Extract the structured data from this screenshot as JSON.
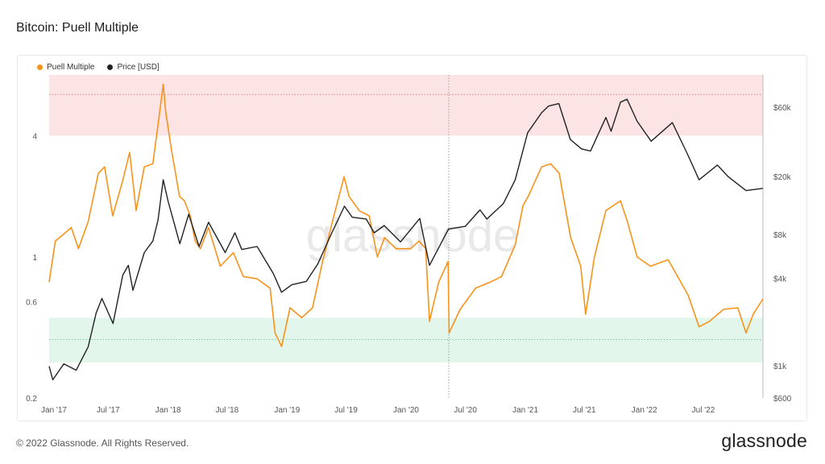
{
  "title": "Bitcoin: Puell Multiple",
  "legend": [
    {
      "label": "Puell Multiple",
      "color": "#f7931a"
    },
    {
      "label": "Price [USD]",
      "color": "#222222"
    }
  ],
  "watermark": "glassnode",
  "footer": {
    "copyright": "© 2022 Glassnode. All Rights Reserved.",
    "logo": "glassnode"
  },
  "colors": {
    "puell": "#f7931a",
    "price": "#222222",
    "red_band": "#fce4e4",
    "green_band": "#e3f6ec",
    "red_line": "#e06666",
    "green_line": "#5bbf8a"
  },
  "chart_data": {
    "type": "line",
    "x_ticks": [
      "Jan '17",
      "Jul '17",
      "Jan '18",
      "Jul '18",
      "Jan '19",
      "Jul '19",
      "Jan '20",
      "Jul '20",
      "Jan '21",
      "Jul '21",
      "Jan '22",
      "Jul '22"
    ],
    "y_left": {
      "scale": "log",
      "ticks": [
        "4",
        "1",
        "0.6",
        "0.2"
      ],
      "tick_values": [
        4,
        1,
        0.6,
        0.2
      ],
      "range": [
        0.2,
        8
      ]
    },
    "y_right": {
      "scale": "log",
      "ticks": [
        "$60k",
        "$20k",
        "$8k",
        "$4k",
        "$1k",
        "$600"
      ],
      "tick_values": [
        60000,
        20000,
        8000,
        4000,
        1000,
        600
      ],
      "range": [
        600,
        100000
      ]
    },
    "bands": [
      {
        "name": "top",
        "from": 4,
        "to": 8
      },
      {
        "name": "bottom",
        "from": 0.3,
        "to": 0.5
      }
    ],
    "reference_lines": [
      {
        "name": "top-dotted",
        "value": 6.4
      },
      {
        "name": "bottom-dotted",
        "value": 0.39
      }
    ],
    "vertical_marker": "2020-05-11",
    "series": [
      {
        "name": "Puell Multiple",
        "axis": "left",
        "points": [
          [
            "2017-01-01",
            0.75
          ],
          [
            "2017-01-20",
            1.2
          ],
          [
            "2017-02-15",
            1.3
          ],
          [
            "2017-03-10",
            1.4
          ],
          [
            "2017-04-01",
            1.1
          ],
          [
            "2017-05-01",
            1.5
          ],
          [
            "2017-06-01",
            2.6
          ],
          [
            "2017-06-20",
            2.8
          ],
          [
            "2017-07-15",
            1.6
          ],
          [
            "2017-08-15",
            2.4
          ],
          [
            "2017-09-05",
            3.3
          ],
          [
            "2017-09-25",
            1.7
          ],
          [
            "2017-10-20",
            2.8
          ],
          [
            "2017-11-15",
            2.9
          ],
          [
            "2017-12-01",
            4.5
          ],
          [
            "2017-12-17",
            7.2
          ],
          [
            "2017-12-25",
            5.2
          ],
          [
            "2018-01-10",
            3.5
          ],
          [
            "2018-02-05",
            2.0
          ],
          [
            "2018-02-20",
            1.9
          ],
          [
            "2018-03-10",
            1.6
          ],
          [
            "2018-03-25",
            1.2
          ],
          [
            "2018-04-10",
            1.1
          ],
          [
            "2018-05-05",
            1.4
          ],
          [
            "2018-06-10",
            0.9
          ],
          [
            "2018-07-20",
            1.05
          ],
          [
            "2018-08-20",
            0.8
          ],
          [
            "2018-10-01",
            0.78
          ],
          [
            "2018-11-10",
            0.7
          ],
          [
            "2018-11-25",
            0.42
          ],
          [
            "2018-12-15",
            0.36
          ],
          [
            "2019-01-10",
            0.56
          ],
          [
            "2019-02-15",
            0.5
          ],
          [
            "2019-03-20",
            0.56
          ],
          [
            "2019-04-20",
            0.95
          ],
          [
            "2019-05-20",
            1.5
          ],
          [
            "2019-06-25",
            2.5
          ],
          [
            "2019-07-10",
            2.0
          ],
          [
            "2019-08-10",
            1.7
          ],
          [
            "2019-09-10",
            1.6
          ],
          [
            "2019-10-05",
            1.0
          ],
          [
            "2019-10-27",
            1.25
          ],
          [
            "2019-12-01",
            1.1
          ],
          [
            "2020-01-15",
            1.1
          ],
          [
            "2020-02-10",
            1.2
          ],
          [
            "2020-03-01",
            1.1
          ],
          [
            "2020-03-13",
            0.48
          ],
          [
            "2020-04-10",
            0.75
          ],
          [
            "2020-05-09",
            0.95
          ],
          [
            "2020-05-12",
            0.42
          ],
          [
            "2020-06-15",
            0.55
          ],
          [
            "2020-08-01",
            0.7
          ],
          [
            "2020-09-15",
            0.75
          ],
          [
            "2020-10-20",
            0.8
          ],
          [
            "2020-12-01",
            1.15
          ],
          [
            "2020-12-25",
            1.8
          ],
          [
            "2021-01-10",
            2.0
          ],
          [
            "2021-02-20",
            2.8
          ],
          [
            "2021-03-20",
            2.9
          ],
          [
            "2021-04-15",
            2.6
          ],
          [
            "2021-05-20",
            1.25
          ],
          [
            "2021-06-20",
            0.9
          ],
          [
            "2021-07-05",
            0.52
          ],
          [
            "2021-08-01",
            1.0
          ],
          [
            "2021-09-05",
            1.7
          ],
          [
            "2021-10-20",
            1.9
          ],
          [
            "2021-11-10",
            1.5
          ],
          [
            "2021-12-10",
            1.0
          ],
          [
            "2022-01-20",
            0.9
          ],
          [
            "2022-03-15",
            0.97
          ],
          [
            "2022-05-15",
            0.65
          ],
          [
            "2022-06-18",
            0.45
          ],
          [
            "2022-07-20",
            0.48
          ],
          [
            "2022-09-01",
            0.55
          ],
          [
            "2022-10-15",
            0.56
          ],
          [
            "2022-11-09",
            0.42
          ],
          [
            "2022-12-01",
            0.52
          ],
          [
            "2022-12-31",
            0.62
          ]
        ]
      },
      {
        "name": "Price [USD]",
        "axis": "right",
        "points": [
          [
            "2017-01-01",
            990
          ],
          [
            "2017-01-12",
            800
          ],
          [
            "2017-02-15",
            1030
          ],
          [
            "2017-03-25",
            930
          ],
          [
            "2017-05-01",
            1350
          ],
          [
            "2017-05-25",
            2300
          ],
          [
            "2017-06-12",
            2900
          ],
          [
            "2017-07-16",
            1950
          ],
          [
            "2017-08-15",
            4200
          ],
          [
            "2017-09-01",
            4900
          ],
          [
            "2017-09-15",
            3300
          ],
          [
            "2017-10-20",
            6000
          ],
          [
            "2017-11-15",
            7200
          ],
          [
            "2017-12-01",
            10000
          ],
          [
            "2017-12-17",
            19000
          ],
          [
            "2018-01-01",
            13500
          ],
          [
            "2018-02-06",
            6900
          ],
          [
            "2018-03-05",
            11000
          ],
          [
            "2018-04-06",
            6600
          ],
          [
            "2018-05-05",
            9700
          ],
          [
            "2018-06-25",
            6000
          ],
          [
            "2018-07-25",
            8200
          ],
          [
            "2018-08-15",
            6300
          ],
          [
            "2018-10-01",
            6600
          ],
          [
            "2018-11-20",
            4300
          ],
          [
            "2018-12-15",
            3200
          ],
          [
            "2019-01-15",
            3600
          ],
          [
            "2019-03-01",
            3800
          ],
          [
            "2019-04-05",
            5000
          ],
          [
            "2019-05-15",
            7900
          ],
          [
            "2019-06-26",
            12500
          ],
          [
            "2019-07-20",
            10500
          ],
          [
            "2019-09-01",
            10200
          ],
          [
            "2019-09-25",
            8200
          ],
          [
            "2019-10-26",
            9200
          ],
          [
            "2019-12-15",
            7100
          ],
          [
            "2020-02-12",
            10300
          ],
          [
            "2020-03-13",
            4900
          ],
          [
            "2020-05-10",
            8700
          ],
          [
            "2020-07-01",
            9100
          ],
          [
            "2020-08-15",
            11800
          ],
          [
            "2020-09-05",
            10200
          ],
          [
            "2020-10-25",
            13000
          ],
          [
            "2020-12-01",
            19000
          ],
          [
            "2021-01-08",
            40000
          ],
          [
            "2021-02-20",
            55000
          ],
          [
            "2021-03-13",
            61000
          ],
          [
            "2021-04-14",
            63500
          ],
          [
            "2021-05-19",
            36000
          ],
          [
            "2021-06-22",
            31000
          ],
          [
            "2021-07-20",
            30000
          ],
          [
            "2021-09-05",
            51000
          ],
          [
            "2021-09-21",
            41000
          ],
          [
            "2021-10-20",
            65000
          ],
          [
            "2021-11-09",
            68000
          ],
          [
            "2021-12-10",
            48000
          ],
          [
            "2022-01-22",
            35000
          ],
          [
            "2022-03-28",
            47000
          ],
          [
            "2022-05-12",
            29000
          ],
          [
            "2022-06-18",
            19000
          ],
          [
            "2022-08-13",
            24000
          ],
          [
            "2022-09-15",
            20000
          ],
          [
            "2022-11-09",
            16000
          ],
          [
            "2022-12-31",
            16600
          ]
        ]
      }
    ]
  }
}
